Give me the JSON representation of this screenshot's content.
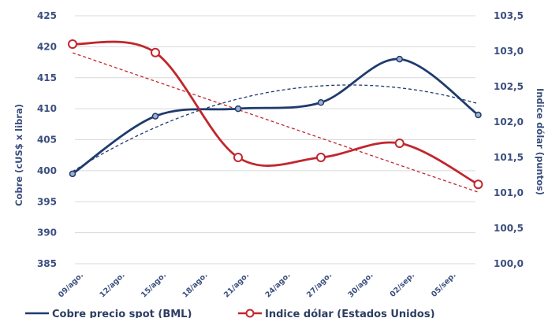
{
  "chart_data": {
    "type": "line",
    "categories": [
      "09/ago.",
      "12/ago.",
      "15/ago.",
      "18/ago.",
      "21/ago.",
      "24/ago.",
      "27/ago.",
      "30/ago.",
      "02/sep.",
      "05/sep."
    ],
    "y_left": {
      "label": "Cobre (cUS$ x libra)",
      "ticks": [
        "385",
        "390",
        "395",
        "400",
        "405",
        "410",
        "415",
        "420",
        "425"
      ],
      "range": [
        385,
        425
      ]
    },
    "y_right": {
      "label": "Indice dólar (puntos)",
      "ticks": [
        "100,0",
        "100,5",
        "101,0",
        "101,5",
        "102,0",
        "102,5",
        "103,0",
        "103,5"
      ],
      "range": [
        100.0,
        103.5
      ]
    },
    "series": [
      {
        "name": "Cobre precio spot (BML)",
        "axis": "left",
        "color": "#1f3a6e",
        "marker": "circle",
        "trendline": "polynomial",
        "x": [
          0,
          2,
          4,
          6,
          7.9,
          9.8
        ],
        "values": [
          399.5,
          408.8,
          410.0,
          411.0,
          418.0,
          409.0
        ]
      },
      {
        "name": "Indice dólar (Estados Unidos)",
        "axis": "right",
        "color": "#c0272d",
        "marker": "circle",
        "trendline": "linear",
        "x": [
          0,
          2,
          4,
          6,
          7.9,
          9.8
        ],
        "values": [
          103.1,
          102.98,
          101.5,
          101.5,
          101.7,
          101.12
        ]
      }
    ],
    "grid": "horizontal",
    "legend_position": "bottom"
  }
}
